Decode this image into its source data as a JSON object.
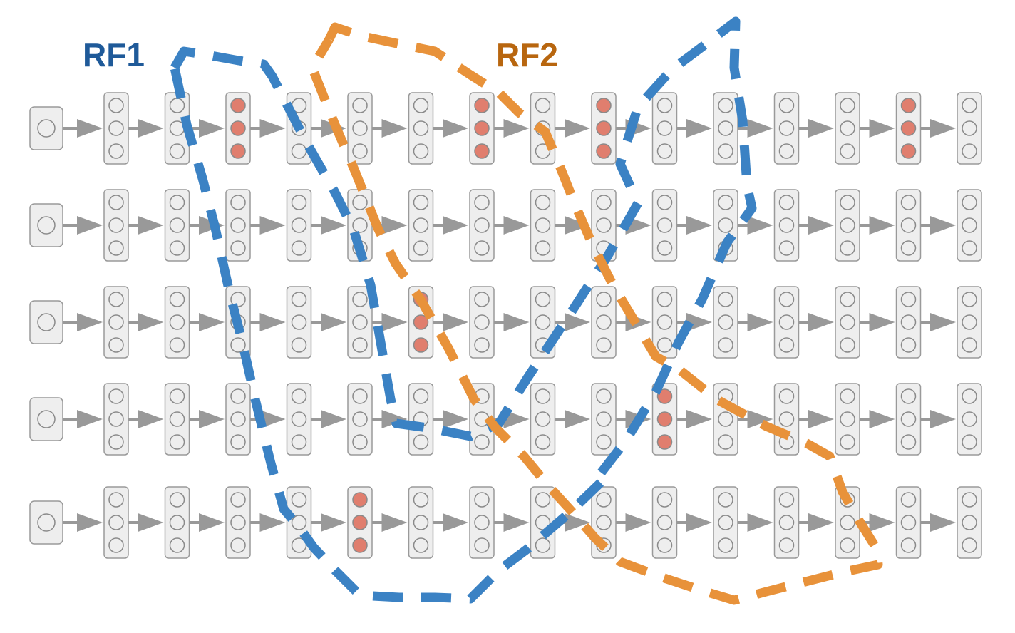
{
  "labels": {
    "rf1": "RF1",
    "rf2": "RF2"
  },
  "colors": {
    "rf1_text": "#1f5a99",
    "rf2_text": "#b8660f",
    "rf1_line": "#3b82c4",
    "rf2_line": "#e8923a",
    "cell_fill": "#eeeeee",
    "cell_stroke": "#9a9a9a",
    "neuron_stroke": "#8a8a8a",
    "active_neuron": "#e07e6e",
    "arrow": "#999999"
  },
  "grid": {
    "rows": 5,
    "hidden_columns": 15,
    "neurons_per_cell": 3,
    "input_cell_per_row": true,
    "active_cells": [
      {
        "row": 0,
        "col": 2
      },
      {
        "row": 0,
        "col": 6
      },
      {
        "row": 0,
        "col": 8
      },
      {
        "row": 0,
        "col": 13
      },
      {
        "row": 2,
        "col": 5
      },
      {
        "row": 3,
        "col": 9
      },
      {
        "row": 4,
        "col": 4
      }
    ]
  },
  "icons": {
    "arrow": "right-arrow-icon"
  }
}
